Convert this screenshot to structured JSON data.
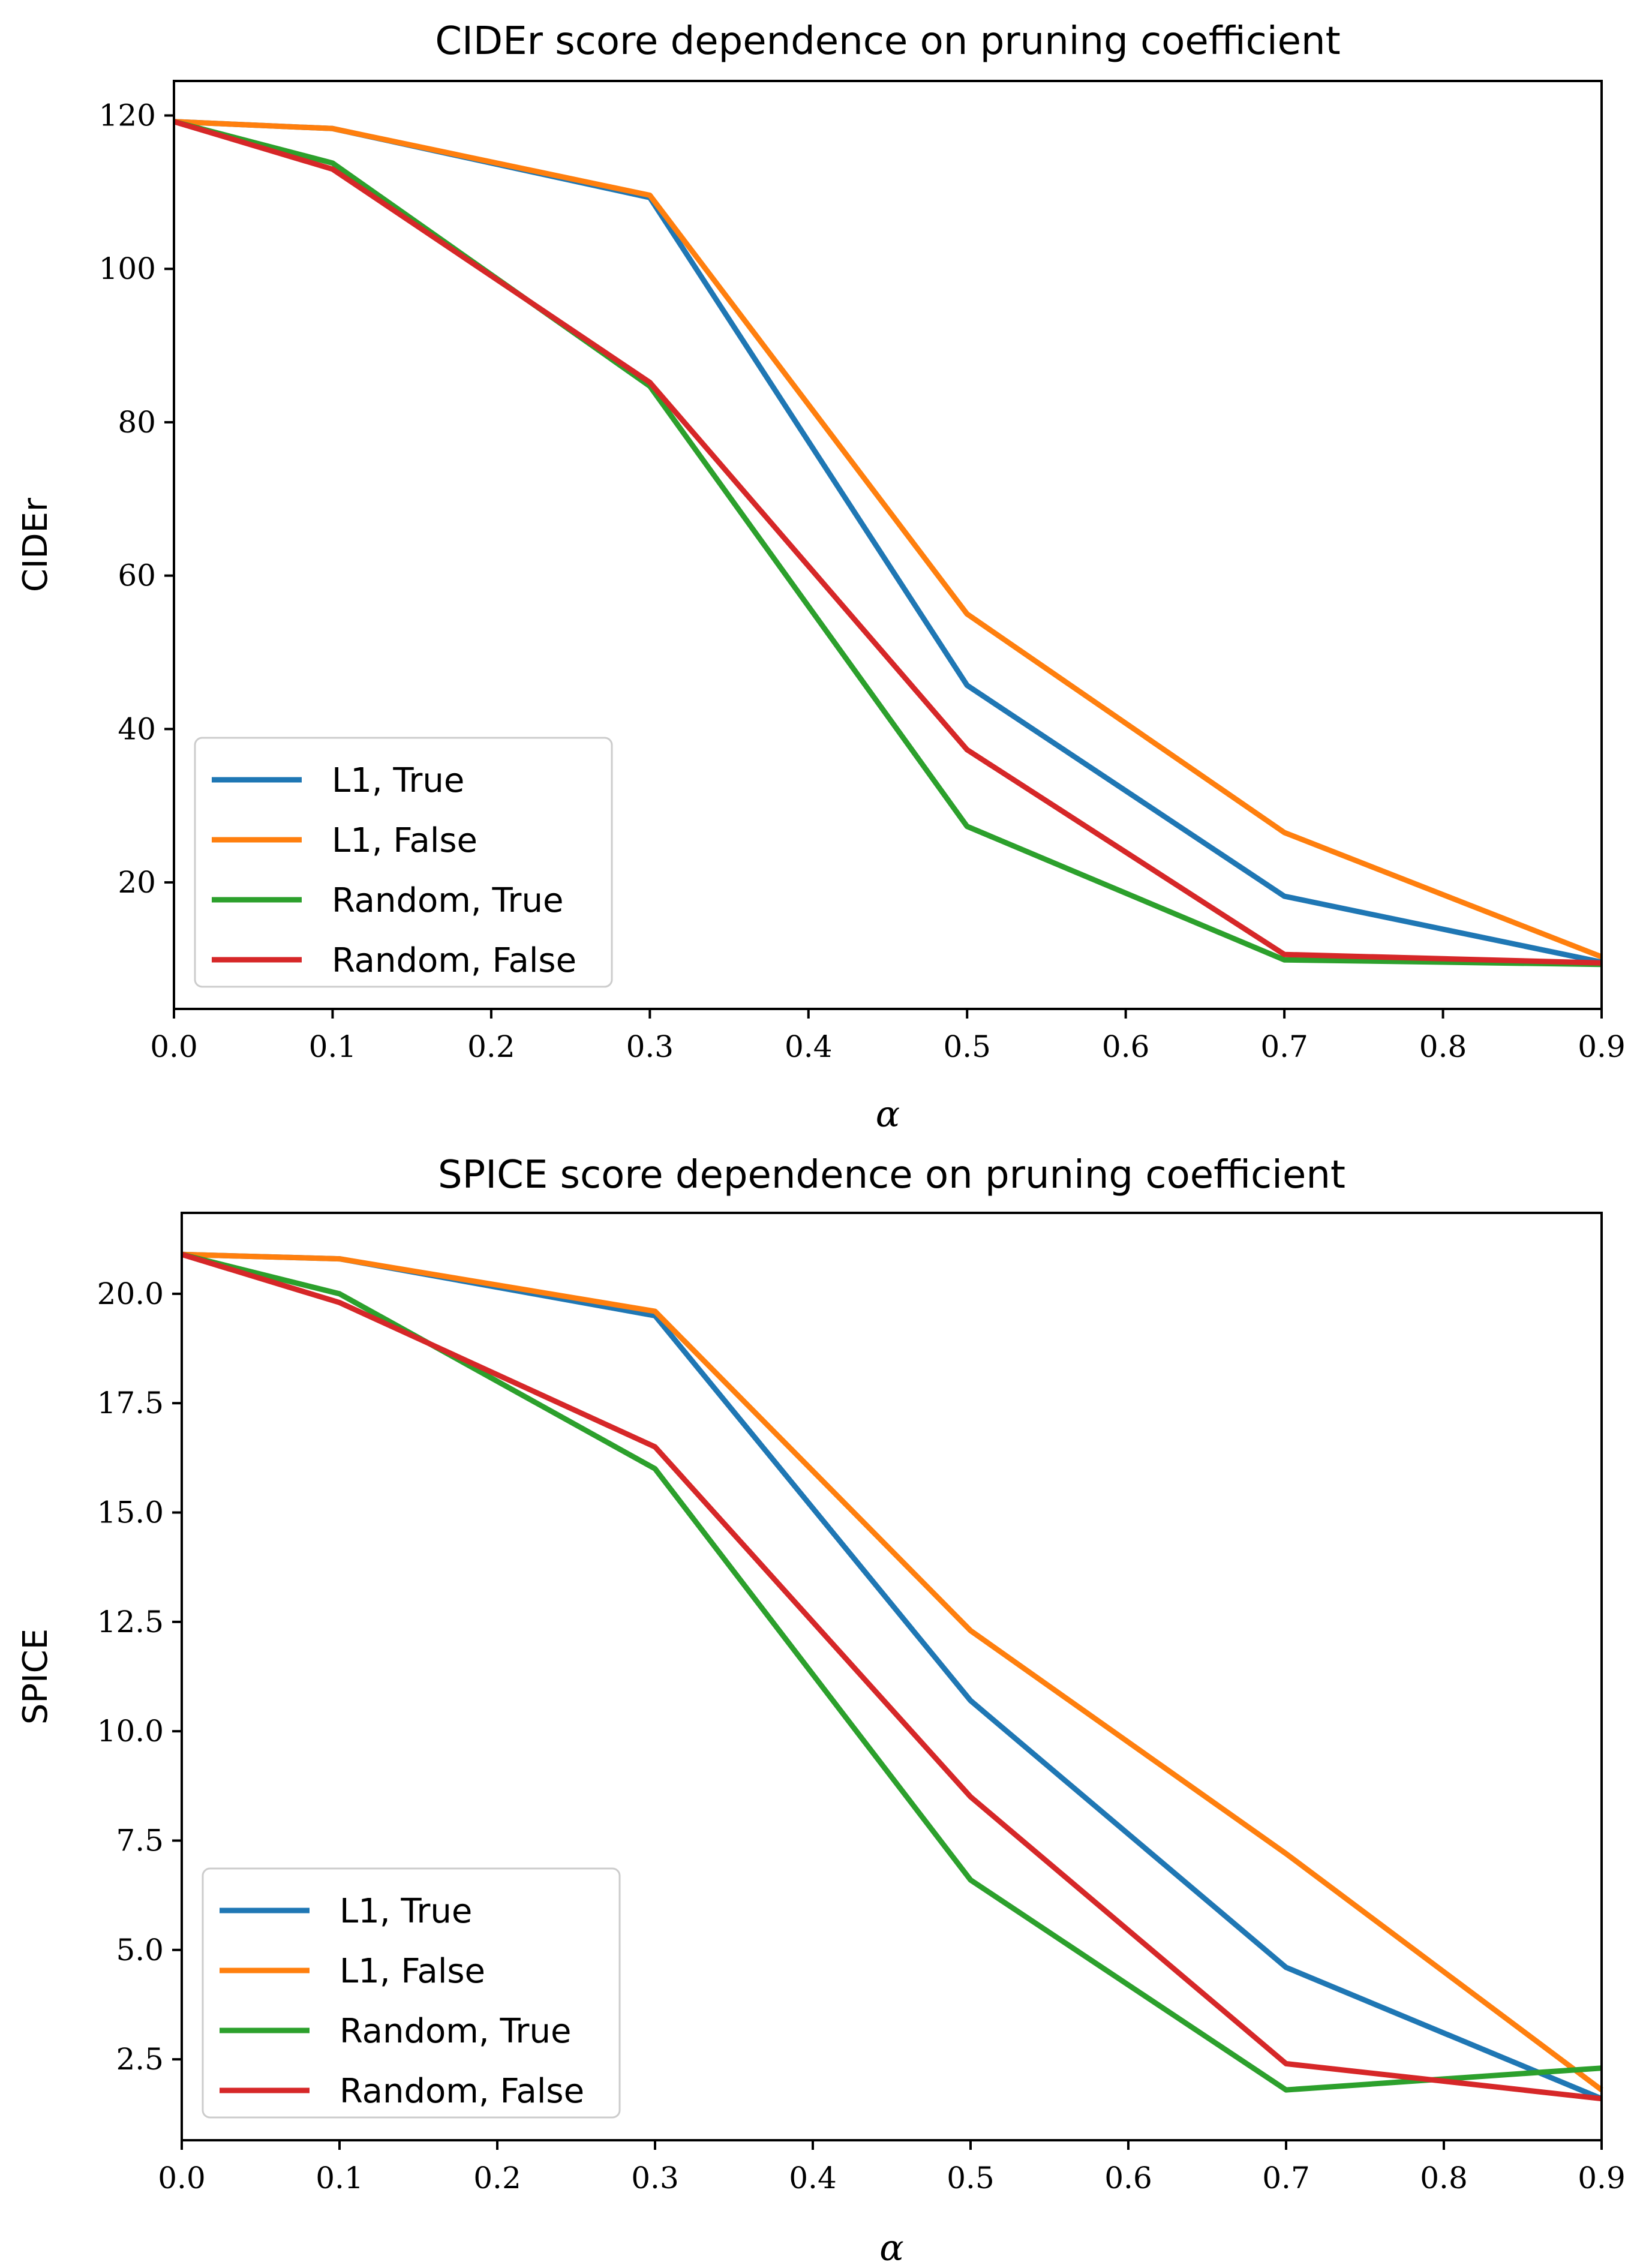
{
  "chart_data": [
    {
      "type": "line",
      "title": "CIDEr score dependence on pruning coefficient",
      "xlabel": "α",
      "ylabel": "CIDEr",
      "x": [
        0.0,
        0.1,
        0.3,
        0.5,
        0.7,
        0.9
      ],
      "xlim": [
        0.0,
        0.9
      ],
      "ylim": [
        3.5,
        124.5
      ],
      "xticks": [
        0.0,
        0.1,
        0.2,
        0.3,
        0.4,
        0.5,
        0.6,
        0.7,
        0.8,
        0.9
      ],
      "xtick_labels": [
        "0.0",
        "0.1",
        "0.2",
        "0.3",
        "0.4",
        "0.5",
        "0.6",
        "0.7",
        "0.8",
        "0.9"
      ],
      "yticks": [
        20,
        40,
        60,
        80,
        100,
        120
      ],
      "ytick_labels": [
        "20",
        "40",
        "60",
        "80",
        "100",
        "120"
      ],
      "grid": false,
      "legend_position": "lower-left",
      "series": [
        {
          "name": "L1, True",
          "color": "#1f77b4",
          "values": [
            119.2,
            118.3,
            109.3,
            45.7,
            18.2,
            9.6
          ]
        },
        {
          "name": "L1, False",
          "color": "#ff7f0e",
          "values": [
            119.2,
            118.3,
            109.6,
            55.0,
            26.5,
            10.3
          ]
        },
        {
          "name": "Random, True",
          "color": "#2ca02c",
          "values": [
            119.2,
            113.8,
            84.7,
            27.3,
            9.9,
            9.3
          ]
        },
        {
          "name": "Random, False",
          "color": "#d62728",
          "values": [
            119.2,
            113.0,
            85.2,
            37.3,
            10.6,
            9.5
          ]
        }
      ]
    },
    {
      "type": "line",
      "title": "SPICE score dependence on pruning coefficient",
      "xlabel": "α",
      "ylabel": "SPICE",
      "x": [
        0.0,
        0.1,
        0.3,
        0.5,
        0.7,
        0.9
      ],
      "xlim": [
        0.0,
        0.9
      ],
      "ylim": [
        0.65,
        21.85
      ],
      "xticks": [
        0.0,
        0.1,
        0.2,
        0.3,
        0.4,
        0.5,
        0.6,
        0.7,
        0.8,
        0.9
      ],
      "xtick_labels": [
        "0.0",
        "0.1",
        "0.2",
        "0.3",
        "0.4",
        "0.5",
        "0.6",
        "0.7",
        "0.8",
        "0.9"
      ],
      "yticks": [
        2.5,
        5.0,
        7.5,
        10.0,
        12.5,
        15.0,
        17.5,
        20.0
      ],
      "ytick_labels": [
        "2.5",
        "5.0",
        "7.5",
        "10.0",
        "12.5",
        "15.0",
        "17.5",
        "20.0"
      ],
      "grid": false,
      "legend_position": "lower-left",
      "series": [
        {
          "name": "L1, True",
          "color": "#1f77b4",
          "values": [
            20.9,
            20.8,
            19.5,
            10.7,
            4.6,
            1.6
          ]
        },
        {
          "name": "L1, False",
          "color": "#ff7f0e",
          "values": [
            20.9,
            20.8,
            19.6,
            12.3,
            7.2,
            1.8
          ]
        },
        {
          "name": "Random, True",
          "color": "#2ca02c",
          "values": [
            20.9,
            20.0,
            16.0,
            6.6,
            1.8,
            2.3
          ]
        },
        {
          "name": "Random, False",
          "color": "#d62728",
          "values": [
            20.9,
            19.8,
            16.5,
            8.5,
            2.4,
            1.6
          ]
        }
      ]
    }
  ]
}
